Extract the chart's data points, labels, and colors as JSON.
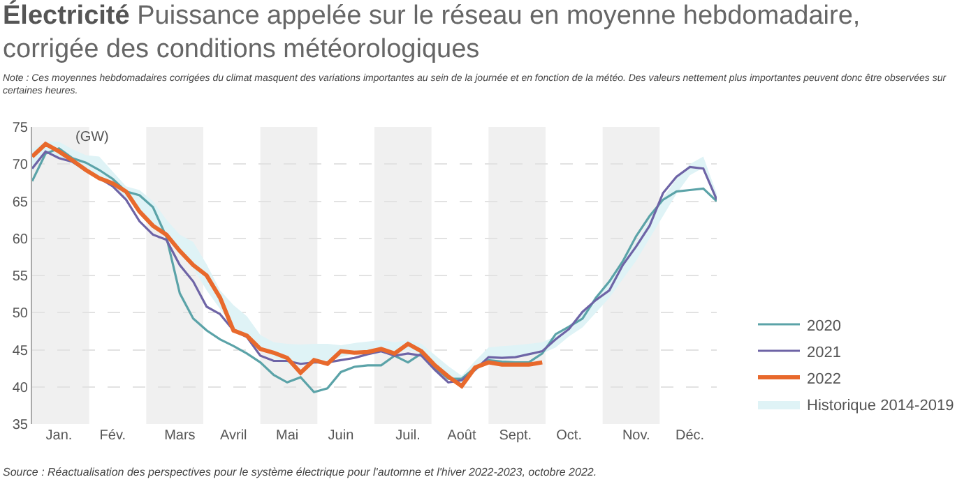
{
  "chart_data": {
    "type": "line",
    "title": "Électricité",
    "subtitle": "Puissance appelée sur le réseau en moyenne hebdomadaire, corrigée des conditions météorologiques",
    "annotations": [
      "Note : Ces moyennes hebdomadaires corrigées du climat masquent des variations importantes au sein de la journée et en fonction de la météo. Des valeurs nettement plus importantes peuvent donc être observées sur certaines heures.",
      "Source : Réactualisation des perspectives pour le système électrique pour l'automne et l'hiver 2022-2023, octobre 2022."
    ],
    "ylabel": "(GW)",
    "categories": [
      null,
      null,
      "Jan.",
      null,
      null,
      null,
      "Fév.",
      null,
      null,
      null,
      null,
      "Mars",
      null,
      null,
      null,
      "Avril",
      null,
      null,
      null,
      "Mai",
      null,
      null,
      null,
      "Juin",
      null,
      null,
      null,
      null,
      "Juil.",
      null,
      null,
      null,
      "Août",
      null,
      null,
      null,
      "Sept.",
      null,
      null,
      null,
      "Oct.",
      null,
      null,
      null,
      null,
      "Nov.",
      null,
      null,
      null,
      "Déc.",
      null,
      null
    ],
    "ylim": [
      35,
      75
    ],
    "yticks": [
      35,
      40,
      45,
      50,
      55,
      60,
      65,
      70,
      75
    ],
    "grid": "y",
    "legend": "right",
    "marker": "none",
    "line_style": "solid",
    "series": [
      {
        "name": "2020",
        "color": "#5ba3a8",
        "values": [
          67.7,
          71.4,
          72.1,
          70.8,
          70.2,
          69.2,
          68.0,
          66.3,
          65.8,
          64.2,
          60.2,
          52.6,
          49.2,
          47.6,
          46.4,
          45.5,
          44.5,
          43.3,
          41.6,
          40.6,
          41.3,
          39.3,
          39.8,
          42.0,
          42.7,
          42.9,
          42.9,
          44.2,
          43.3,
          44.5,
          42.6,
          41.1,
          41.1,
          42.6,
          43.6,
          43.4,
          43.3,
          43.3,
          44.5,
          47.1,
          48.1,
          49.2,
          52.0,
          54.2,
          56.9,
          60.3,
          63.0,
          65.2,
          66.3,
          66.5,
          66.7,
          65.0
        ]
      },
      {
        "name": "2021",
        "color": "#6e64a6",
        "values": [
          69.4,
          71.7,
          70.8,
          70.3,
          69.2,
          68.1,
          67.0,
          65.2,
          62.3,
          60.5,
          59.8,
          56.4,
          54.2,
          50.8,
          49.8,
          47.6,
          46.7,
          44.2,
          43.5,
          43.5,
          43.1,
          43.3,
          43.3,
          43.6,
          43.9,
          44.4,
          44.8,
          44.2,
          44.5,
          44.2,
          42.3,
          40.6,
          40.9,
          42.3,
          44.0,
          43.9,
          44.0,
          44.4,
          44.8,
          46.4,
          47.8,
          50.1,
          51.7,
          53.0,
          56.4,
          58.9,
          61.7,
          66.1,
          68.3,
          69.6,
          69.4,
          65.2
        ]
      },
      {
        "name": "2022",
        "color": "#e8692c",
        "values": [
          71.0,
          72.7,
          71.7,
          70.5,
          69.2,
          68.1,
          67.4,
          66.3,
          63.6,
          61.7,
          60.5,
          58.3,
          56.4,
          55.0,
          52.0,
          47.6,
          46.9,
          45.1,
          44.6,
          43.9,
          41.9,
          43.6,
          43.1,
          44.8,
          44.6,
          44.7,
          45.1,
          44.5,
          45.8,
          44.8,
          42.9,
          41.4,
          40.1,
          42.6,
          43.3,
          43.0,
          43.0,
          43.0,
          43.3,
          null,
          null,
          null,
          null,
          null,
          null,
          null,
          null,
          null,
          null,
          null,
          null,
          null
        ]
      },
      {
        "name": "Historique 2014-2019",
        "type": "area",
        "color": "#dff3f6",
        "values": [
          null,
          null,
          null,
          null,
          null,
          null,
          null,
          null,
          null,
          null,
          null,
          null,
          null,
          null,
          null,
          null,
          null,
          null,
          null,
          null,
          null,
          null,
          null,
          null,
          null,
          null,
          null,
          null,
          null,
          null,
          null,
          null,
          null,
          null,
          null,
          null,
          null,
          null,
          null,
          null,
          null,
          null,
          null,
          null,
          null,
          null,
          null,
          null,
          null,
          null,
          null,
          null
        ],
        "lower": [
          69,
          71.5,
          71,
          70,
          69,
          68,
          67,
          65.5,
          64,
          62,
          60,
          58,
          56,
          53,
          50.5,
          48,
          46.5,
          45,
          44,
          43,
          43,
          43.5,
          43.5,
          44,
          44.5,
          44.7,
          44.8,
          44.5,
          45,
          44.5,
          42.5,
          41,
          40.5,
          42,
          43.5,
          43.8,
          44,
          44.2,
          44.5,
          45.3,
          46.8,
          48,
          50,
          52,
          54.5,
          57,
          60,
          63,
          66,
          68.5,
          69.5,
          65
        ],
        "upper": [
          72,
          73,
          73,
          72,
          71.2,
          71,
          69,
          67,
          66.5,
          65,
          62.5,
          60.5,
          59.5,
          56.5,
          53,
          51,
          49.5,
          47,
          46,
          45.8,
          45.7,
          45.8,
          45.8,
          45.6,
          45.9,
          46.1,
          46.3,
          46,
          46.3,
          45.8,
          44.3,
          42.8,
          41.5,
          43.5,
          45.3,
          45.5,
          45.6,
          45.8,
          46,
          46.8,
          48.3,
          50,
          52,
          54.5,
          57,
          59.5,
          62.5,
          65.5,
          68,
          70,
          71,
          66
        ]
      }
    ]
  }
}
